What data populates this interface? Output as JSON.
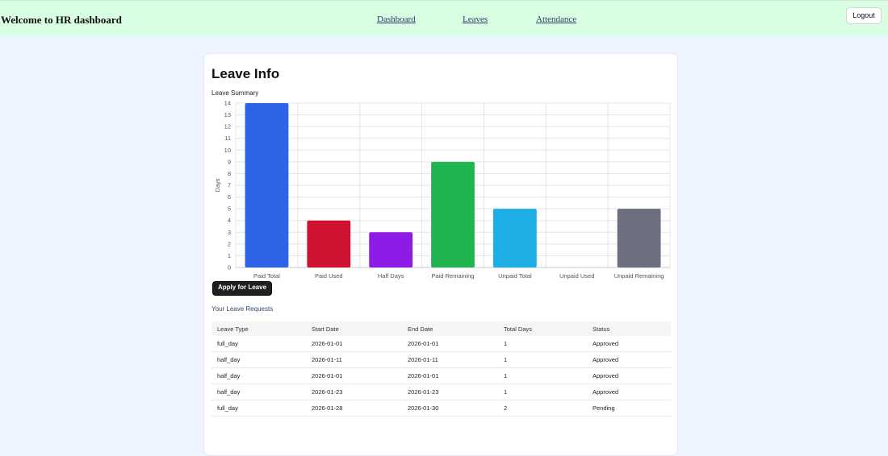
{
  "header": {
    "brand": "Welcome to HR dashboard",
    "nav": [
      "Dashboard",
      "Leaves",
      "Attendance"
    ],
    "logout_label": "Logout"
  },
  "card": {
    "title": "Leave Info",
    "chart_subtitle": "Leave Summary",
    "apply_label": "Apply for Leave",
    "requests_title": "Your Leave Requests"
  },
  "chart_data": {
    "type": "bar",
    "title": "Leave Summary",
    "xlabel": "",
    "ylabel": "Days",
    "ylim": [
      0,
      14
    ],
    "yticks": [
      0,
      1,
      2,
      3,
      4,
      5,
      6,
      7,
      8,
      9,
      10,
      11,
      12,
      13,
      14
    ],
    "categories": [
      "Paid Total",
      "Paid Used",
      "Half Days",
      "Paid Remaining",
      "Unpaid Total",
      "Unpaid Used",
      "Unpaid Remaining"
    ],
    "values": [
      14,
      4,
      3,
      9,
      5,
      0,
      5
    ],
    "colors": [
      "#2c63e7",
      "#cf1230",
      "#8f1ce6",
      "#21b552",
      "#1eaee6",
      "#9aa0a6",
      "#6b6f7f"
    ],
    "grid": true,
    "legend": "none"
  },
  "table": {
    "headers": [
      "Leave Type",
      "Start Date",
      "End Date",
      "Total Days",
      "Status"
    ],
    "rows": [
      [
        "full_day",
        "2026-01-01",
        "2026-01-01",
        "1",
        "Approved"
      ],
      [
        "half_day",
        "2026-01-11",
        "2026-01-11",
        "1",
        "Approved"
      ],
      [
        "half_day",
        "2026-01-01",
        "2026-01-01",
        "1",
        "Approved"
      ],
      [
        "half_day",
        "2026-01-23",
        "2026-01-23",
        "1",
        "Approved"
      ],
      [
        "full_day",
        "2026-01-28",
        "2026-01-30",
        "2",
        "Pending"
      ]
    ]
  }
}
